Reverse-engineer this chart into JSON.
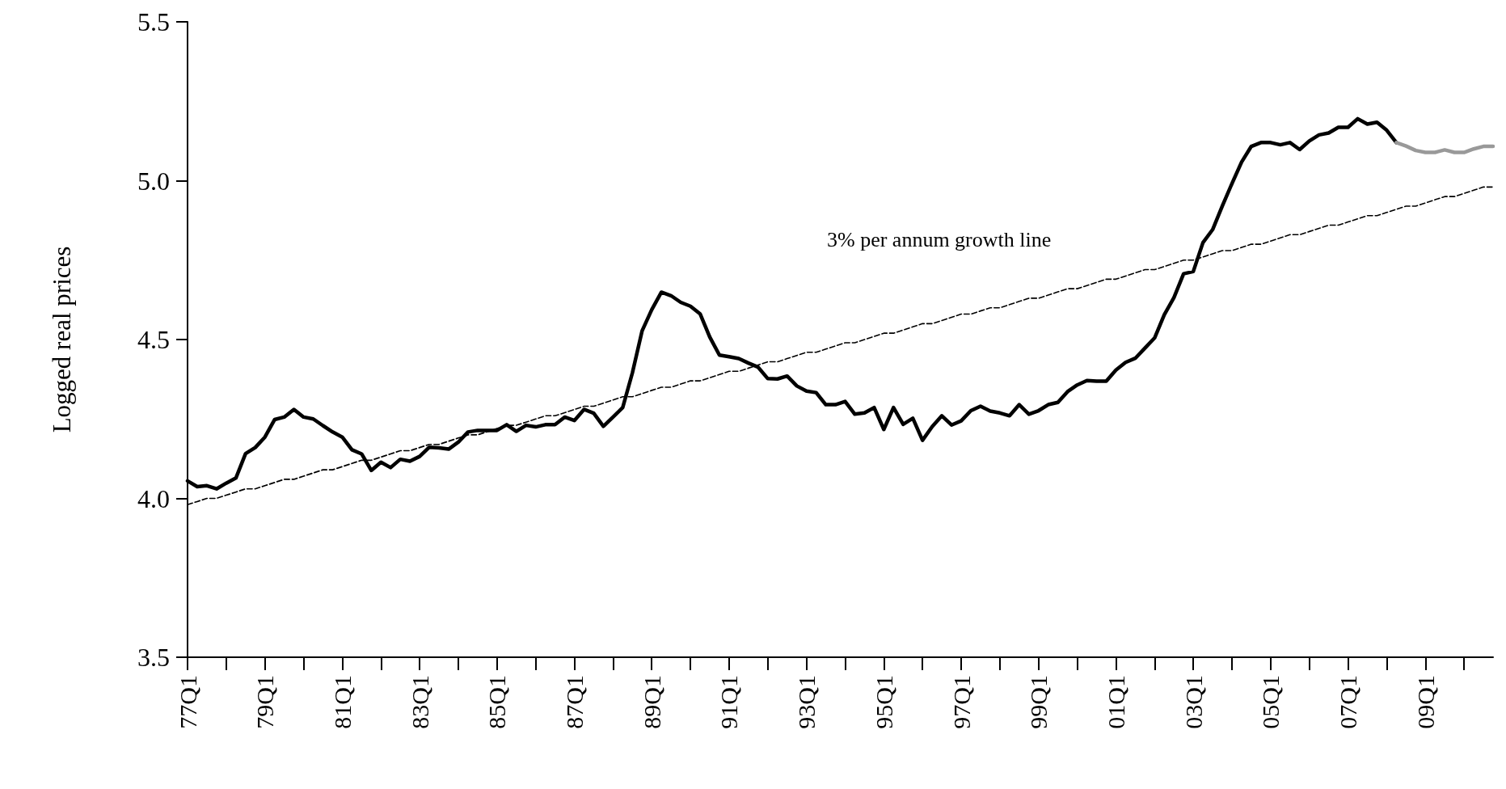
{
  "chart_data": {
    "type": "line",
    "ylabel": "Logged real prices",
    "annotations": [
      "3% per annum growth line"
    ],
    "categories": [
      "77Q1",
      null,
      null,
      null,
      null,
      null,
      null,
      null,
      "79Q1",
      null,
      null,
      null,
      null,
      null,
      null,
      null,
      "81Q1",
      null,
      null,
      null,
      null,
      null,
      null,
      null,
      "83Q1",
      null,
      null,
      null,
      null,
      null,
      null,
      null,
      "85Q1",
      null,
      null,
      null,
      null,
      null,
      null,
      null,
      "87Q1",
      null,
      null,
      null,
      null,
      null,
      null,
      null,
      "89Q1",
      null,
      null,
      null,
      null,
      null,
      null,
      null,
      "91Q1",
      null,
      null,
      null,
      null,
      null,
      null,
      null,
      "93Q1",
      null,
      null,
      null,
      null,
      null,
      null,
      null,
      "95Q1",
      null,
      null,
      null,
      null,
      null,
      null,
      null,
      "97Q1",
      null,
      null,
      null,
      null,
      null,
      null,
      null,
      "99Q1",
      null,
      null,
      null,
      null,
      null,
      null,
      null,
      "01Q1",
      null,
      null,
      null,
      null,
      null,
      null,
      null,
      "03Q1",
      null,
      null,
      null,
      null,
      null,
      null,
      null,
      "05Q1",
      null,
      null,
      null,
      null,
      null,
      null,
      null,
      "07Q1",
      null,
      null,
      null,
      null,
      null,
      null,
      null,
      "09Q1",
      null,
      null,
      null,
      null,
      null,
      null,
      null
    ],
    "series": [
      {
        "color": "#000000",
        "line_style": "solid",
        "values": [
          4.055,
          4.037,
          4.04,
          4.03,
          4.048,
          4.064,
          4.141,
          4.16,
          4.193,
          4.248,
          4.256,
          4.28,
          4.256,
          4.25,
          4.229,
          4.209,
          4.193,
          4.153,
          4.14,
          4.088,
          4.114,
          4.097,
          4.123,
          4.117,
          4.132,
          4.161,
          4.159,
          4.155,
          4.177,
          4.209,
          4.214,
          4.214,
          4.214,
          4.232,
          4.211,
          4.23,
          4.225,
          4.232,
          4.232,
          4.256,
          4.245,
          4.28,
          4.268,
          4.227,
          4.256,
          4.286,
          4.395,
          4.527,
          4.594,
          4.649,
          4.638,
          4.617,
          4.605,
          4.581,
          4.508,
          4.451,
          4.446,
          4.44,
          4.426,
          4.413,
          4.377,
          4.376,
          4.385,
          4.354,
          4.338,
          4.333,
          4.295,
          4.295,
          4.305,
          4.265,
          4.269,
          4.286,
          4.217,
          4.286,
          4.233,
          4.252,
          4.183,
          4.226,
          4.26,
          4.231,
          4.244,
          4.276,
          4.29,
          4.275,
          4.269,
          4.26,
          4.295,
          4.265,
          4.276,
          4.295,
          4.302,
          4.336,
          4.357,
          4.371,
          4.369,
          4.369,
          4.404,
          4.428,
          4.441,
          4.473,
          4.505,
          4.578,
          4.632,
          4.707,
          4.714,
          4.805,
          4.846,
          4.92,
          4.991,
          5.059,
          5.108,
          5.12,
          5.12,
          5.113,
          5.12,
          5.098,
          5.125,
          5.144,
          5.15,
          5.168,
          5.168,
          5.195,
          5.178,
          5.184,
          5.159,
          5.12,
          null,
          null,
          null,
          null,
          null,
          null,
          null,
          null,
          null,
          null
        ]
      },
      {
        "color": "#999999",
        "line_style": "solid",
        "values": [
          null,
          null,
          null,
          null,
          null,
          null,
          null,
          null,
          null,
          null,
          null,
          null,
          null,
          null,
          null,
          null,
          null,
          null,
          null,
          null,
          null,
          null,
          null,
          null,
          null,
          null,
          null,
          null,
          null,
          null,
          null,
          null,
          null,
          null,
          null,
          null,
          null,
          null,
          null,
          null,
          null,
          null,
          null,
          null,
          null,
          null,
          null,
          null,
          null,
          null,
          null,
          null,
          null,
          null,
          null,
          null,
          null,
          null,
          null,
          null,
          null,
          null,
          null,
          null,
          null,
          null,
          null,
          null,
          null,
          null,
          null,
          null,
          null,
          null,
          null,
          null,
          null,
          null,
          null,
          null,
          null,
          null,
          null,
          null,
          null,
          null,
          null,
          null,
          null,
          null,
          null,
          null,
          null,
          null,
          null,
          null,
          null,
          null,
          null,
          null,
          null,
          null,
          null,
          null,
          null,
          null,
          null,
          null,
          null,
          null,
          null,
          null,
          null,
          null,
          null,
          null,
          null,
          null,
          null,
          null,
          null,
          null,
          null,
          null,
          null,
          5.12,
          5.109,
          5.095,
          5.089,
          5.089,
          5.097,
          5.089,
          5.089,
          5.1,
          5.108,
          5.108
        ]
      },
      {
        "color": "#000000",
        "line_style": "dashed",
        "values": [
          3.98,
          3.99,
          4.0,
          4.0,
          4.01,
          4.02,
          4.03,
          4.03,
          4.04,
          4.05,
          4.06,
          4.06,
          4.07,
          4.08,
          4.09,
          4.09,
          4.1,
          4.11,
          4.12,
          4.12,
          4.13,
          4.14,
          4.15,
          4.15,
          4.16,
          4.17,
          4.17,
          4.18,
          4.19,
          4.2,
          4.2,
          4.21,
          4.22,
          4.23,
          4.23,
          4.24,
          4.25,
          4.26,
          4.26,
          4.27,
          4.28,
          4.29,
          4.29,
          4.3,
          4.31,
          4.32,
          4.32,
          4.33,
          4.34,
          4.35,
          4.35,
          4.36,
          4.37,
          4.37,
          4.38,
          4.39,
          4.4,
          4.4,
          4.41,
          4.42,
          4.43,
          4.43,
          4.44,
          4.45,
          4.46,
          4.46,
          4.47,
          4.48,
          4.49,
          4.49,
          4.5,
          4.51,
          4.52,
          4.52,
          4.53,
          4.54,
          4.55,
          4.55,
          4.56,
          4.57,
          4.58,
          4.58,
          4.59,
          4.6,
          4.6,
          4.61,
          4.62,
          4.63,
          4.63,
          4.64,
          4.65,
          4.66,
          4.66,
          4.67,
          4.68,
          4.69,
          4.69,
          4.7,
          4.71,
          4.72,
          4.72,
          4.73,
          4.74,
          4.75,
          4.75,
          4.76,
          4.77,
          4.78,
          4.78,
          4.79,
          4.8,
          4.8,
          4.81,
          4.82,
          4.83,
          4.83,
          4.84,
          4.85,
          4.86,
          4.86,
          4.87,
          4.88,
          4.89,
          4.89,
          4.9,
          4.91,
          4.92,
          4.92,
          4.93,
          4.94,
          4.95,
          4.95,
          4.96,
          4.97,
          4.98,
          4.98
        ]
      }
    ],
    "ylim": [
      3.5,
      5.5
    ],
    "yticks": [
      3.5,
      {
        "value": 4,
        "label": "4.0"
      },
      4.5,
      {
        "value": 5,
        "label": "5.0"
      },
      5.5
    ],
    "grid": false,
    "marker": "none"
  }
}
